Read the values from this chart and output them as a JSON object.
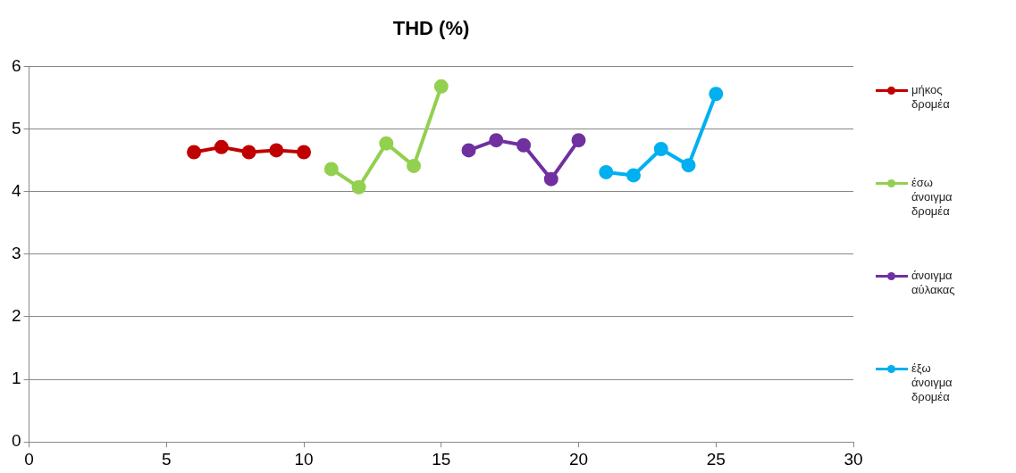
{
  "chart_data": {
    "type": "line",
    "title": "THD (%)",
    "marker": "circle",
    "grid": "y",
    "legend": "right",
    "xlim": [
      0,
      30
    ],
    "xticks": [
      0,
      5,
      10,
      15,
      20,
      25,
      30
    ],
    "ylim": [
      0,
      6
    ],
    "yticks": [
      0,
      1,
      2,
      3,
      4,
      5,
      6
    ],
    "series": [
      {
        "name": "μήκος δρομέα",
        "color": "#c00000",
        "x": [
          6,
          7,
          8,
          9,
          10
        ],
        "values": [
          4.63,
          4.71,
          4.63,
          4.66,
          4.63
        ]
      },
      {
        "name": "έσω άνοιγμα δρομέα",
        "color": "#92d050",
        "x": [
          11,
          12,
          13,
          14,
          15
        ],
        "values": [
          4.36,
          4.07,
          4.77,
          4.41,
          5.68
        ]
      },
      {
        "name": "άνοιγμα αύλακας",
        "color": "#7030a0",
        "x": [
          16,
          17,
          18,
          19,
          20
        ],
        "values": [
          4.66,
          4.82,
          4.74,
          4.2,
          4.82
        ]
      },
      {
        "name": "έξω άνοιγμα δρομέα",
        "color": "#00b0f0",
        "x": [
          21,
          22,
          23,
          24,
          25
        ],
        "values": [
          4.31,
          4.26,
          4.68,
          4.42,
          5.56
        ]
      }
    ]
  }
}
